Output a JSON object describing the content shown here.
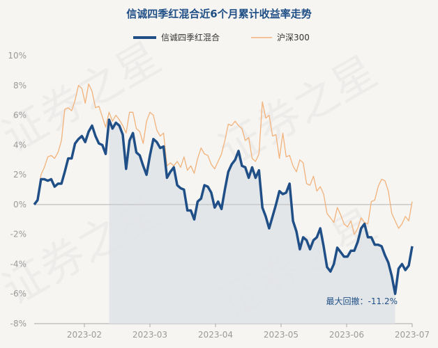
{
  "chart_data": {
    "type": "line",
    "title": "信诚四季红混合近6个月累计收益率走势",
    "watermark": "证券之星",
    "y_unit": "%",
    "ylim": [
      -8,
      10
    ],
    "y_ticks": [
      "10%",
      "8%",
      "6%",
      "4%",
      "2%",
      "0%",
      "-2%",
      "-4%",
      "-6%",
      "-8%"
    ],
    "x_ticks": [
      "2023-02",
      "2023-03",
      "2023-04",
      "2023-05",
      "2023-06",
      "2023-07"
    ],
    "legend_position": "top-center",
    "grid": false,
    "drawdown_shading": true,
    "annotation": "最大回撤：-11.2%",
    "series": [
      {
        "name": "信诚四季红混合",
        "color": "#1f4f86",
        "values": [
          0.0,
          0.3,
          1.7,
          1.7,
          1.6,
          1.7,
          1.2,
          1.4,
          1.4,
          2.2,
          3.1,
          3.1,
          4.1,
          4.4,
          4.6,
          4.2,
          4.9,
          5.3,
          4.6,
          4.1,
          4.0,
          3.4,
          5.7,
          5.1,
          5.5,
          5.3,
          4.7,
          2.4,
          4.3,
          4.8,
          3.5,
          3.3,
          2.6,
          2.0,
          3.3,
          4.4,
          4.2,
          3.8,
          3.9,
          1.8,
          2.2,
          2.5,
          1.3,
          1.1,
          1.0,
          -0.4,
          -0.4,
          -1.0,
          0.2,
          0.4,
          1.3,
          1.2,
          0.8,
          -0.2,
          0.2,
          -0.3,
          1.0,
          2.2,
          2.7,
          3.0,
          3.6,
          2.6,
          2.5,
          1.8,
          2.5,
          1.8,
          2.3,
          -0.2,
          -0.8,
          -1.6,
          -0.8,
          0.0,
          0.9,
          0.7,
          0.8,
          1.4,
          -1.1,
          -1.8,
          -3.0,
          -2.2,
          -2.4,
          -3.0,
          -2.4,
          -2.2,
          -1.6,
          -2.8,
          -4.2,
          -4.5,
          -4.0,
          -2.9,
          -3.2,
          -3.5,
          -3.5,
          -3.1,
          -3.1,
          -2.5,
          -1.6,
          -1.3,
          -2.2,
          -2.2,
          -2.7,
          -2.7,
          -2.8,
          -3.4,
          -3.9,
          -4.8,
          -6.0,
          -4.3,
          -4.0,
          -4.4,
          -4.1,
          -2.8
        ]
      },
      {
        "name": "沪深300",
        "color": "#f2b27a",
        "values": [
          0.0,
          0.4,
          2.0,
          2.5,
          3.2,
          3.3,
          3.1,
          3.5,
          4.3,
          6.4,
          6.5,
          6.3,
          7.0,
          8.0,
          7.8,
          6.8,
          8.1,
          7.6,
          6.5,
          6.6,
          5.9,
          5.2,
          6.2,
          5.6,
          6.0,
          5.7,
          5.3,
          4.8,
          6.2,
          6.2,
          5.1,
          4.9,
          4.1,
          5.6,
          6.2,
          6.0,
          5.0,
          4.6,
          4.8,
          2.6,
          2.8,
          2.6,
          2.9,
          2.5,
          3.2,
          2.3,
          2.6,
          2.1,
          3.1,
          3.8,
          3.4,
          3.3,
          2.7,
          2.4,
          2.9,
          3.4,
          4.3,
          5.4,
          5.3,
          5.6,
          5.3,
          5.1,
          4.3,
          4.5,
          3.1,
          2.9,
          3.4,
          6.9,
          5.8,
          6.0,
          4.6,
          4.7,
          3.1,
          4.8,
          3.2,
          3.3,
          2.6,
          2.2,
          3.0,
          2.8,
          1.4,
          1.3,
          1.9,
          0.9,
          1.2,
          0.7,
          -0.6,
          -0.9,
          -1.2,
          -0.2,
          -0.7,
          -1.3,
          -1.5,
          -1.1,
          -2.0,
          -1.6,
          -0.9,
          -1.2,
          -1.3,
          0.2,
          0.3,
          1.2,
          1.7,
          1.6,
          0.9,
          -0.6,
          -1.1,
          -1.6,
          -1.3,
          -0.8,
          -1.1,
          0.2
        ]
      }
    ]
  }
}
